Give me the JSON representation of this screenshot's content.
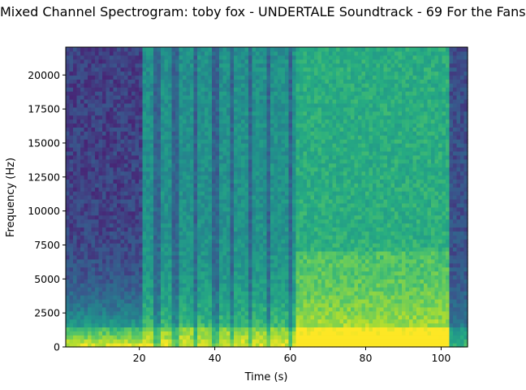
{
  "chart_data": {
    "type": "heatmap",
    "title": "Mixed Channel Spectrogram: toby fox - UNDERTALE Soundtrack - 69 For the Fans",
    "xlabel": "Time (s)",
    "ylabel": "Frequency (Hz)",
    "xlim": [
      0.5,
      107
    ],
    "ylim": [
      0,
      22050
    ],
    "x_ticks": [
      20,
      40,
      60,
      80,
      100
    ],
    "y_ticks": [
      0,
      2500,
      5000,
      7500,
      10000,
      12500,
      15000,
      17500,
      20000
    ],
    "colormap": "viridis",
    "grid": false,
    "sections": [
      {
        "start": 0.5,
        "end": 20.5,
        "high_freq_energy": 0.2,
        "low_freq_energy": 0.85
      },
      {
        "start": 20.5,
        "end": 61.5,
        "high_freq_energy": 0.5,
        "low_freq_energy": 0.85
      },
      {
        "start": 61.5,
        "end": 102.5,
        "high_freq_energy": 0.62,
        "low_freq_energy": 0.95
      },
      {
        "start": 102.5,
        "end": 107,
        "high_freq_energy": 0.25,
        "low_freq_energy": 0.55
      }
    ],
    "dropouts": [
      24.5,
      29.5,
      35,
      40,
      44.5,
      49.5,
      54.5,
      60
    ]
  }
}
